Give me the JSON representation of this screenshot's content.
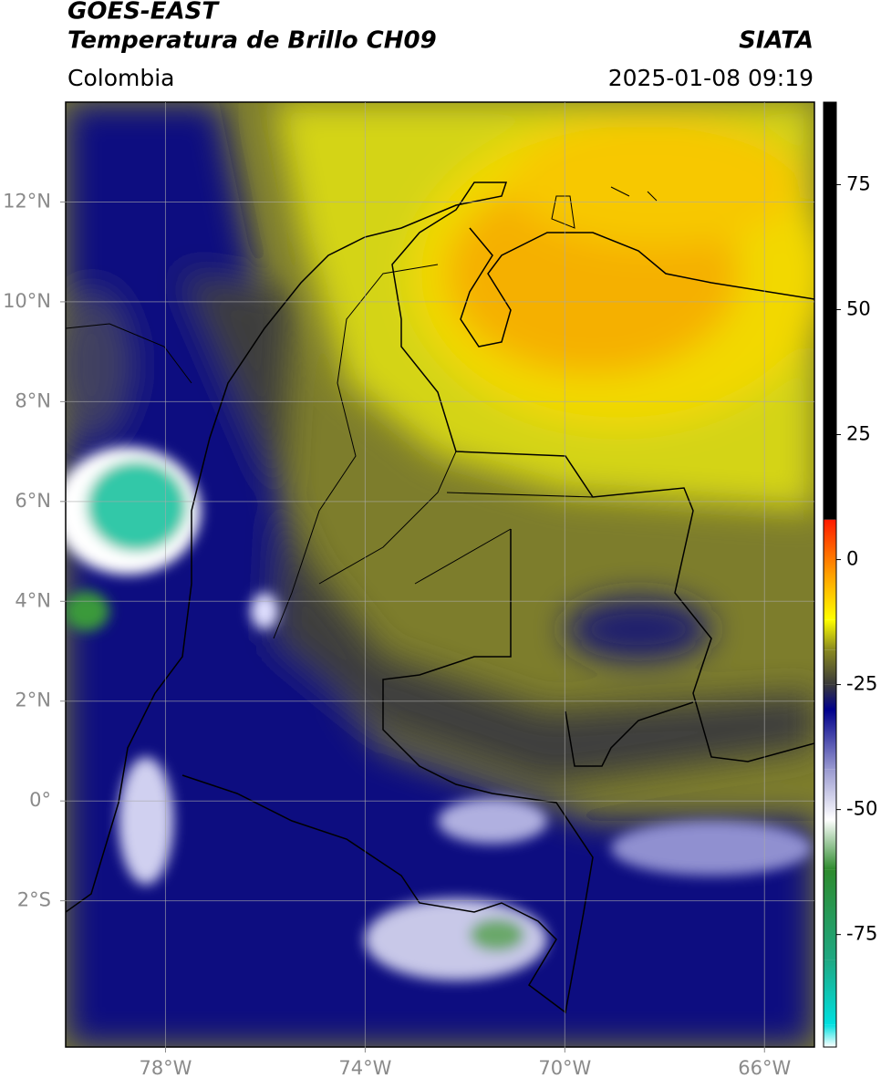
{
  "title": "GOES-EAST",
  "subtitle": "Temperatura de Brillo CH09",
  "source": "SIATA",
  "region": "Colombia",
  "timestamp": "2025-01-08 09:19",
  "chart_data": {
    "type": "map",
    "xlim": [
      -80,
      -65
    ],
    "ylim": [
      -4.93,
      14
    ],
    "xticks": [
      {
        "value": -78,
        "label": "78°W"
      },
      {
        "value": -74,
        "label": "74°W"
      },
      {
        "value": -70,
        "label": "70°W"
      },
      {
        "value": -66,
        "label": "66°W"
      }
    ],
    "yticks": [
      {
        "value": 12,
        "label": "12°N"
      },
      {
        "value": 10,
        "label": "10°N"
      },
      {
        "value": 8,
        "label": "8°N"
      },
      {
        "value": 6,
        "label": "6°N"
      },
      {
        "value": 4,
        "label": "4°N"
      },
      {
        "value": 2,
        "label": "2°N"
      },
      {
        "value": 0,
        "label": "0°"
      },
      {
        "value": -2,
        "label": "2°S"
      }
    ],
    "grid": true,
    "colorbar": {
      "lim": [
        -97.5,
        91.5
      ],
      "ticks": [
        -75,
        -50,
        -25,
        0,
        25,
        50,
        75
      ],
      "stops": [
        {
          "value": -97.5,
          "color": "#ffffff"
        },
        {
          "value": -93,
          "color": "#00e0e0"
        },
        {
          "value": -80,
          "color": "#1fa882"
        },
        {
          "value": -62,
          "color": "#2e8b2e"
        },
        {
          "value": -52,
          "color": "#ffffff"
        },
        {
          "value": -42,
          "color": "#9a9ad0"
        },
        {
          "value": -30,
          "color": "#00008b"
        },
        {
          "value": -25,
          "color": "#3a3a3a"
        },
        {
          "value": -18,
          "color": "#8a8a20"
        },
        {
          "value": -12,
          "color": "#ffff00"
        },
        {
          "value": -3,
          "color": "#ffa000"
        },
        {
          "value": 8,
          "color": "#ff1a00"
        },
        {
          "value": 8,
          "color": "#000000"
        },
        {
          "value": 91.5,
          "color": "#000000"
        }
      ]
    }
  }
}
